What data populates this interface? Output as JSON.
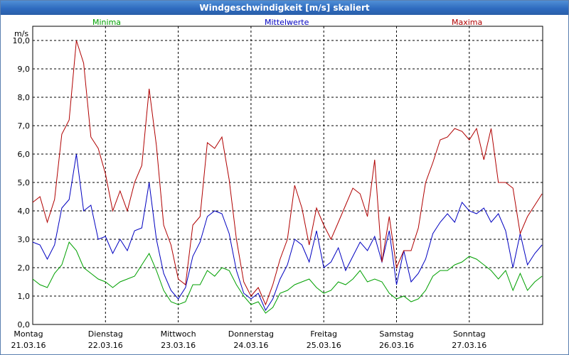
{
  "window": {
    "title": "Windgeschwindigkeit [m/s] skaliert"
  },
  "chart_data": {
    "type": "line",
    "title": "Windgeschwindigkeit [m/s] skaliert",
    "ylabel": "m/s",
    "ylim": [
      0,
      10.5
    ],
    "xlim": [
      0,
      7.04
    ],
    "grid": true,
    "legend_placement": "top",
    "y_ticks": [
      "0,0",
      "1,0",
      "2,0",
      "3,0",
      "4,0",
      "5,0",
      "6,0",
      "7,0",
      "8,0",
      "9,0",
      "10,0"
    ],
    "x_ticks": [
      {
        "day": "Montag",
        "date": "21.03.16",
        "pos": 0
      },
      {
        "day": "Dienstag",
        "date": "22.03.16",
        "pos": 1
      },
      {
        "day": "Mittwoch",
        "date": "23.03.16",
        "pos": 2
      },
      {
        "day": "Donnerstag",
        "date": "24.03.16",
        "pos": 3
      },
      {
        "day": "Freitag",
        "date": "25.03.16",
        "pos": 4
      },
      {
        "day": "Samstag",
        "date": "26.03.16",
        "pos": 5
      },
      {
        "day": "Sonntag",
        "date": "27.03.16",
        "pos": 6
      }
    ],
    "x": [
      0,
      0.1,
      0.2,
      0.3,
      0.4,
      0.5,
      0.6,
      0.7,
      0.8,
      0.9,
      1.0,
      1.1,
      1.2,
      1.3,
      1.4,
      1.5,
      1.6,
      1.7,
      1.8,
      1.9,
      2.0,
      2.1,
      2.2,
      2.3,
      2.4,
      2.5,
      2.6,
      2.7,
      2.8,
      2.9,
      3.0,
      3.1,
      3.2,
      3.3,
      3.4,
      3.5,
      3.6,
      3.7,
      3.8,
      3.9,
      4.0,
      4.1,
      4.2,
      4.3,
      4.4,
      4.5,
      4.6,
      4.7,
      4.8,
      4.9,
      5.0,
      5.1,
      5.2,
      5.3,
      5.4,
      5.5,
      5.6,
      5.7,
      5.8,
      5.9,
      6.0,
      6.1,
      6.2,
      6.3,
      6.4,
      6.5,
      6.6,
      6.7,
      6.8,
      6.9,
      7.0
    ],
    "series": [
      {
        "name": "Minima",
        "color": "#00a000",
        "values": [
          1.6,
          1.4,
          1.3,
          1.8,
          2.1,
          2.9,
          2.6,
          2.0,
          1.8,
          1.6,
          1.5,
          1.3,
          1.5,
          1.6,
          1.7,
          2.1,
          2.5,
          1.9,
          1.2,
          0.8,
          0.7,
          0.8,
          1.4,
          1.4,
          1.9,
          1.7,
          2.0,
          1.9,
          1.4,
          1.0,
          0.7,
          0.8,
          0.4,
          0.6,
          1.1,
          1.2,
          1.4,
          1.5,
          1.6,
          1.3,
          1.1,
          1.2,
          1.5,
          1.4,
          1.6,
          1.9,
          1.5,
          1.6,
          1.5,
          1.1,
          0.9,
          1.0,
          0.8,
          0.9,
          1.2,
          1.7,
          1.9,
          1.9,
          2.1,
          2.2,
          2.4,
          2.3,
          2.1,
          1.9,
          1.6,
          1.9,
          1.2,
          1.8,
          1.2,
          1.5,
          1.7
        ]
      },
      {
        "name": "Mittelwerte",
        "color": "#0000c0",
        "values": [
          2.9,
          2.8,
          2.3,
          2.8,
          4.1,
          4.4,
          6.0,
          4.0,
          4.2,
          3.0,
          3.1,
          2.5,
          3.0,
          2.6,
          3.3,
          3.4,
          5.0,
          3.0,
          1.8,
          1.2,
          0.9,
          1.3,
          2.4,
          2.9,
          3.8,
          4.0,
          3.9,
          3.2,
          1.9,
          1.1,
          0.9,
          1.1,
          0.5,
          0.9,
          1.6,
          2.1,
          3.0,
          2.8,
          2.2,
          3.3,
          2.0,
          2.2,
          2.7,
          1.9,
          2.4,
          2.9,
          2.6,
          3.1,
          2.2,
          3.3,
          1.4,
          2.6,
          1.5,
          1.8,
          2.3,
          3.2,
          3.6,
          3.9,
          3.6,
          4.3,
          4.0,
          3.9,
          4.1,
          3.6,
          3.9,
          3.3,
          2.0,
          3.2,
          2.1,
          2.5,
          2.8
        ]
      },
      {
        "name": "Maxima",
        "color": "#b00000",
        "values": [
          4.3,
          4.5,
          3.6,
          4.4,
          6.7,
          7.2,
          10.0,
          9.2,
          6.6,
          6.2,
          5.3,
          4.0,
          4.7,
          4.0,
          5.0,
          5.6,
          8.3,
          6.3,
          3.5,
          2.8,
          1.6,
          1.4,
          3.5,
          3.8,
          6.4,
          6.2,
          6.6,
          5.1,
          3.0,
          1.5,
          1.0,
          1.3,
          0.7,
          1.4,
          2.3,
          3.0,
          4.9,
          4.1,
          2.8,
          4.1,
          3.5,
          3.0,
          3.6,
          4.2,
          4.8,
          4.6,
          3.8,
          5.8,
          2.2,
          3.8,
          2.0,
          2.6,
          2.6,
          3.4,
          5.0,
          5.7,
          6.5,
          6.6,
          6.9,
          6.8,
          6.5,
          6.9,
          5.8,
          6.9,
          5.0,
          5.0,
          4.8,
          3.2,
          3.8,
          4.2,
          4.6
        ]
      }
    ]
  }
}
